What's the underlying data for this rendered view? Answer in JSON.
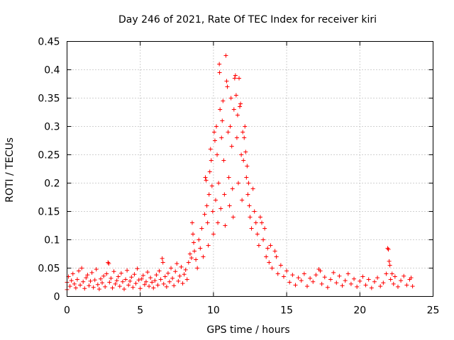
{
  "chart_data": {
    "type": "scatter",
    "title": "Day 246 of 2021, Rate Of TEC Index for receiver kiri",
    "xlabel": "GPS time / hours",
    "ylabel": "ROTI / TECUs",
    "xlim": [
      0,
      25
    ],
    "ylim": [
      0,
      0.45
    ],
    "xticks": [
      0,
      5,
      10,
      15,
      20,
      25
    ],
    "xtick_labels": [
      "0",
      "5",
      "10",
      "15",
      "20",
      "25"
    ],
    "yticks": [
      0,
      0.05,
      0.1,
      0.15,
      0.2,
      0.25,
      0.3,
      0.35,
      0.4,
      0.45
    ],
    "ytick_labels": [
      "0",
      "0.05",
      "0.1",
      "0.15",
      "0.2",
      "0.25",
      "0.3",
      "0.35",
      "0.4",
      "0.45"
    ],
    "grid": true,
    "marker": "+",
    "series": [
      {
        "name": "ROTI",
        "color": "#ff0000",
        "points": [
          [
            0.0,
            0.012
          ],
          [
            0.0,
            0.025
          ],
          [
            0.1,
            0.035
          ],
          [
            0.2,
            0.018
          ],
          [
            0.3,
            0.028
          ],
          [
            0.4,
            0.04
          ],
          [
            0.5,
            0.022
          ],
          [
            0.6,
            0.015
          ],
          [
            0.7,
            0.03
          ],
          [
            0.8,
            0.045
          ],
          [
            0.9,
            0.02
          ],
          [
            1.0,
            0.05
          ],
          [
            1.1,
            0.026
          ],
          [
            1.2,
            0.014
          ],
          [
            1.3,
            0.033
          ],
          [
            1.4,
            0.038
          ],
          [
            1.5,
            0.019
          ],
          [
            1.6,
            0.027
          ],
          [
            1.7,
            0.042
          ],
          [
            1.8,
            0.016
          ],
          [
            1.9,
            0.029
          ],
          [
            2.0,
            0.048
          ],
          [
            2.1,
            0.021
          ],
          [
            2.2,
            0.013
          ],
          [
            2.3,
            0.031
          ],
          [
            2.4,
            0.024
          ],
          [
            2.5,
            0.036
          ],
          [
            2.6,
            0.017
          ],
          [
            2.7,
            0.04
          ],
          [
            2.8,
            0.06
          ],
          [
            2.85,
            0.058
          ],
          [
            2.9,
            0.025
          ],
          [
            3.0,
            0.032
          ],
          [
            3.1,
            0.015
          ],
          [
            3.2,
            0.044
          ],
          [
            3.3,
            0.022
          ],
          [
            3.4,
            0.028
          ],
          [
            3.5,
            0.035
          ],
          [
            3.6,
            0.018
          ],
          [
            3.7,
            0.041
          ],
          [
            3.8,
            0.026
          ],
          [
            3.9,
            0.013
          ],
          [
            4.0,
            0.03
          ],
          [
            4.1,
            0.046
          ],
          [
            4.2,
            0.02
          ],
          [
            4.3,
            0.027
          ],
          [
            4.4,
            0.034
          ],
          [
            4.5,
            0.016
          ],
          [
            4.6,
            0.039
          ],
          [
            4.7,
            0.023
          ],
          [
            4.8,
            0.049
          ],
          [
            4.9,
            0.029
          ],
          [
            5.0,
            0.014
          ],
          [
            5.1,
            0.031
          ],
          [
            5.2,
            0.037
          ],
          [
            5.3,
            0.021
          ],
          [
            5.4,
            0.026
          ],
          [
            5.5,
            0.043
          ],
          [
            5.6,
            0.018
          ],
          [
            5.7,
            0.033
          ],
          [
            5.8,
            0.025
          ],
          [
            5.9,
            0.015
          ],
          [
            6.0,
            0.028
          ],
          [
            6.1,
            0.038
          ],
          [
            6.2,
            0.02
          ],
          [
            6.3,
            0.045
          ],
          [
            6.4,
            0.03
          ],
          [
            6.5,
            0.067
          ],
          [
            6.55,
            0.06
          ],
          [
            6.6,
            0.022
          ],
          [
            6.7,
            0.035
          ],
          [
            6.8,
            0.017
          ],
          [
            6.9,
            0.041
          ],
          [
            7.0,
            0.026
          ],
          [
            7.1,
            0.05
          ],
          [
            7.2,
            0.032
          ],
          [
            7.3,
            0.019
          ],
          [
            7.4,
            0.044
          ],
          [
            7.5,
            0.058
          ],
          [
            7.6,
            0.027
          ],
          [
            7.7,
            0.036
          ],
          [
            7.8,
            0.052
          ],
          [
            7.9,
            0.023
          ],
          [
            8.0,
            0.039
          ],
          [
            8.1,
            0.047
          ],
          [
            8.2,
            0.03
          ],
          [
            8.3,
            0.06
          ],
          [
            8.4,
            0.075
          ],
          [
            8.5,
            0.068
          ],
          [
            8.55,
            0.13
          ],
          [
            8.6,
            0.11
          ],
          [
            8.65,
            0.095
          ],
          [
            8.7,
            0.08
          ],
          [
            8.8,
            0.065
          ],
          [
            8.9,
            0.05
          ],
          [
            9.0,
            0.1
          ],
          [
            9.1,
            0.085
          ],
          [
            9.2,
            0.12
          ],
          [
            9.3,
            0.07
          ],
          [
            9.4,
            0.145
          ],
          [
            9.45,
            0.21
          ],
          [
            9.5,
            0.205
          ],
          [
            9.55,
            0.16
          ],
          [
            9.6,
            0.13
          ],
          [
            9.65,
            0.09
          ],
          [
            9.7,
            0.18
          ],
          [
            9.75,
            0.22
          ],
          [
            9.8,
            0.26
          ],
          [
            9.85,
            0.24
          ],
          [
            9.9,
            0.195
          ],
          [
            9.95,
            0.15
          ],
          [
            10.0,
            0.11
          ],
          [
            10.05,
            0.29
          ],
          [
            10.1,
            0.275
          ],
          [
            10.15,
            0.17
          ],
          [
            10.2,
            0.3
          ],
          [
            10.25,
            0.25
          ],
          [
            10.3,
            0.13
          ],
          [
            10.35,
            0.2
          ],
          [
            10.4,
            0.41
          ],
          [
            10.42,
            0.395
          ],
          [
            10.45,
            0.33
          ],
          [
            10.5,
            0.155
          ],
          [
            10.55,
            0.28
          ],
          [
            10.6,
            0.31
          ],
          [
            10.65,
            0.345
          ],
          [
            10.7,
            0.24
          ],
          [
            10.75,
            0.18
          ],
          [
            10.8,
            0.125
          ],
          [
            10.85,
            0.425
          ],
          [
            10.9,
            0.38
          ],
          [
            10.95,
            0.37
          ],
          [
            11.0,
            0.29
          ],
          [
            11.05,
            0.21
          ],
          [
            11.1,
            0.16
          ],
          [
            11.15,
            0.3
          ],
          [
            11.2,
            0.35
          ],
          [
            11.25,
            0.265
          ],
          [
            11.3,
            0.19
          ],
          [
            11.35,
            0.14
          ],
          [
            11.4,
            0.33
          ],
          [
            11.45,
            0.385
          ],
          [
            11.5,
            0.39
          ],
          [
            11.55,
            0.355
          ],
          [
            11.6,
            0.28
          ],
          [
            11.65,
            0.32
          ],
          [
            11.7,
            0.2
          ],
          [
            11.75,
            0.385
          ],
          [
            11.8,
            0.335
          ],
          [
            11.85,
            0.34
          ],
          [
            11.9,
            0.25
          ],
          [
            11.95,
            0.17
          ],
          [
            12.0,
            0.29
          ],
          [
            12.05,
            0.24
          ],
          [
            12.1,
            0.28
          ],
          [
            12.15,
            0.3
          ],
          [
            12.2,
            0.255
          ],
          [
            12.25,
            0.21
          ],
          [
            12.3,
            0.23
          ],
          [
            12.35,
            0.18
          ],
          [
            12.4,
            0.2
          ],
          [
            12.45,
            0.16
          ],
          [
            12.5,
            0.14
          ],
          [
            12.6,
            0.12
          ],
          [
            12.7,
            0.19
          ],
          [
            12.8,
            0.15
          ],
          [
            12.9,
            0.13
          ],
          [
            13.0,
            0.11
          ],
          [
            13.1,
            0.09
          ],
          [
            13.2,
            0.14
          ],
          [
            13.3,
            0.13
          ],
          [
            13.4,
            0.1
          ],
          [
            13.5,
            0.12
          ],
          [
            13.6,
            0.07
          ],
          [
            13.7,
            0.085
          ],
          [
            13.8,
            0.06
          ],
          [
            13.9,
            0.09
          ],
          [
            14.0,
            0.05
          ],
          [
            14.2,
            0.08
          ],
          [
            14.3,
            0.07
          ],
          [
            14.4,
            0.04
          ],
          [
            14.6,
            0.055
          ],
          [
            14.8,
            0.035
          ],
          [
            15.0,
            0.045
          ],
          [
            15.2,
            0.025
          ],
          [
            15.4,
            0.038
          ],
          [
            15.6,
            0.02
          ],
          [
            15.8,
            0.033
          ],
          [
            16.0,
            0.028
          ],
          [
            16.2,
            0.04
          ],
          [
            16.4,
            0.018
          ],
          [
            16.6,
            0.032
          ],
          [
            16.8,
            0.026
          ],
          [
            17.0,
            0.038
          ],
          [
            17.2,
            0.048
          ],
          [
            17.3,
            0.045
          ],
          [
            17.4,
            0.022
          ],
          [
            17.6,
            0.034
          ],
          [
            17.8,
            0.016
          ],
          [
            18.0,
            0.03
          ],
          [
            18.2,
            0.042
          ],
          [
            18.4,
            0.024
          ],
          [
            18.6,
            0.036
          ],
          [
            18.8,
            0.019
          ],
          [
            19.0,
            0.028
          ],
          [
            19.2,
            0.04
          ],
          [
            19.4,
            0.022
          ],
          [
            19.6,
            0.031
          ],
          [
            19.8,
            0.017
          ],
          [
            20.0,
            0.027
          ],
          [
            20.2,
            0.035
          ],
          [
            20.4,
            0.02
          ],
          [
            20.6,
            0.03
          ],
          [
            20.8,
            0.015
          ],
          [
            21.0,
            0.026
          ],
          [
            21.2,
            0.033
          ],
          [
            21.4,
            0.018
          ],
          [
            21.6,
            0.024
          ],
          [
            21.8,
            0.04
          ],
          [
            21.9,
            0.085
          ],
          [
            21.95,
            0.083
          ],
          [
            22.0,
            0.062
          ],
          [
            22.05,
            0.055
          ],
          [
            22.1,
            0.03
          ],
          [
            22.2,
            0.04
          ],
          [
            22.3,
            0.022
          ],
          [
            22.4,
            0.035
          ],
          [
            22.6,
            0.017
          ],
          [
            22.8,
            0.028
          ],
          [
            23.0,
            0.036
          ],
          [
            23.2,
            0.02
          ],
          [
            23.4,
            0.03
          ],
          [
            23.5,
            0.033
          ],
          [
            23.6,
            0.018
          ]
        ]
      }
    ]
  }
}
